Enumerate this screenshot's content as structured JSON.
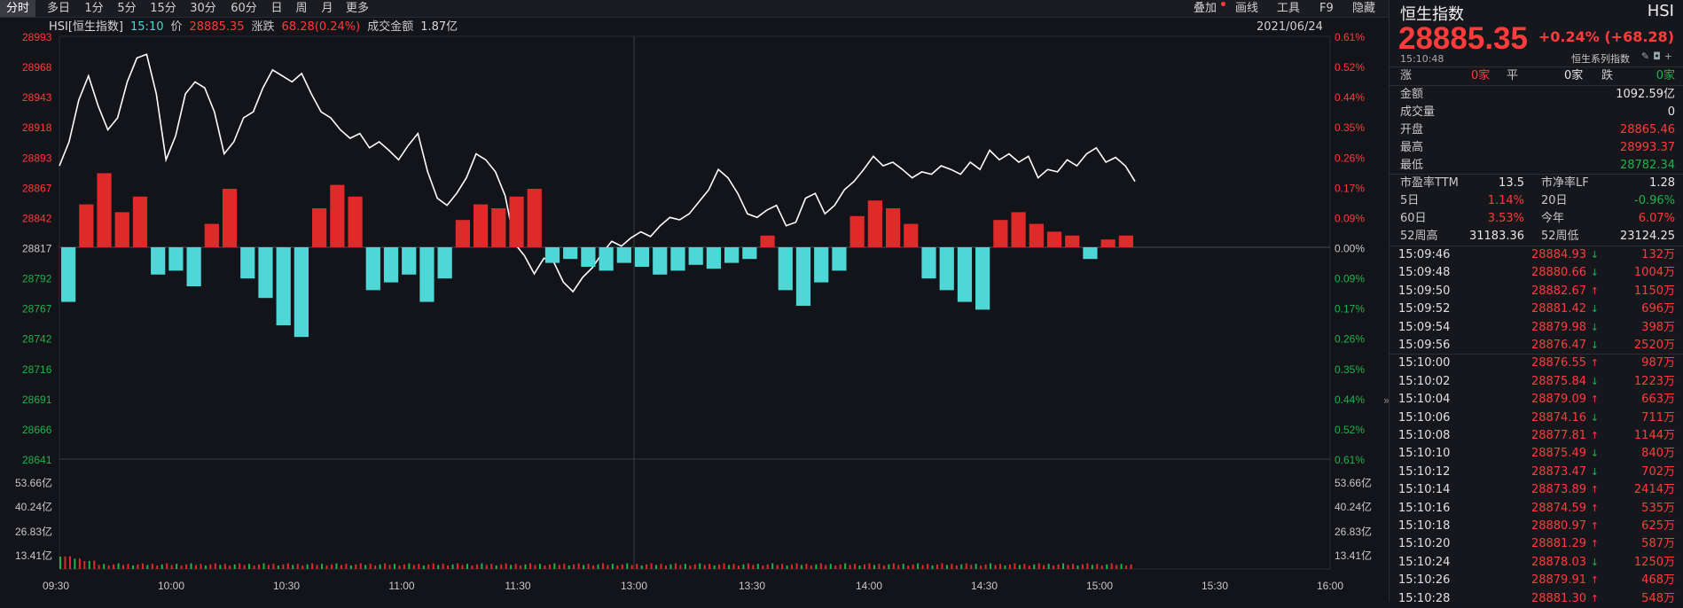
{
  "toolbar": {
    "left_tabs": [
      "分时",
      "多日",
      "1分",
      "5分",
      "15分",
      "30分",
      "60分",
      "日",
      "周",
      "月",
      "更多"
    ],
    "active_tab": "分时",
    "right_tools": [
      "叠加",
      "画线",
      "工具",
      "F9",
      "隐藏"
    ]
  },
  "info": {
    "symbol": "HSI[恒生指数]",
    "time": "15:10",
    "price_label": "价",
    "price": "28885.35",
    "change_label": "涨跌",
    "change": "68.28(0.24%)",
    "turnover_label": "成交金额",
    "turnover": "1.87亿",
    "date": "2021/06/24"
  },
  "colors": {
    "up": "#ff3b3b",
    "down": "#22b14c",
    "down_bar": "#4fd6d6",
    "line": "#ffffff",
    "grid": "#2a2b31"
  },
  "chart_data": {
    "type": "line",
    "base_price": 28817.07,
    "y_ticks": [
      "28993",
      "28968",
      "28943",
      "28918",
      "28893",
      "28867",
      "28842",
      "28817",
      "28792",
      "28767",
      "28742",
      "28716",
      "28691",
      "28666",
      "28641"
    ],
    "pct_ticks": [
      "0.61%",
      "0.52%",
      "0.44%",
      "0.35%",
      "0.26%",
      "0.17%",
      "0.09%",
      "0.00%",
      "0.09%",
      "0.17%",
      "0.26%",
      "0.35%",
      "0.44%",
      "0.52%",
      "0.61%"
    ],
    "volume_ticks": [
      "53.66亿",
      "40.24亿",
      "26.83亿",
      "13.41亿"
    ],
    "x_ticks": [
      "09:30",
      "10:00",
      "10:30",
      "11:00",
      "11:30",
      "13:00",
      "13:30",
      "14:00",
      "14:30",
      "15:00",
      "15:30",
      "16:00"
    ],
    "ylim": [
      28641,
      28993
    ],
    "volume_max": 67.08,
    "price_points": [
      [
        0,
        28885
      ],
      [
        2,
        28905
      ],
      [
        4,
        28940
      ],
      [
        6,
        28960
      ],
      [
        8,
        28935
      ],
      [
        10,
        28915
      ],
      [
        12,
        28925
      ],
      [
        14,
        28955
      ],
      [
        16,
        28975
      ],
      [
        18,
        28978
      ],
      [
        20,
        28945
      ],
      [
        22,
        28890
      ],
      [
        24,
        28910
      ],
      [
        26,
        28945
      ],
      [
        28,
        28955
      ],
      [
        30,
        28950
      ],
      [
        32,
        28930
      ],
      [
        34,
        28895
      ],
      [
        36,
        28905
      ],
      [
        38,
        28925
      ],
      [
        40,
        28930
      ],
      [
        42,
        28950
      ],
      [
        44,
        28965
      ],
      [
        46,
        28960
      ],
      [
        48,
        28955
      ],
      [
        50,
        28962
      ],
      [
        52,
        28945
      ],
      [
        54,
        28930
      ],
      [
        56,
        28925
      ],
      [
        58,
        28915
      ],
      [
        60,
        28908
      ],
      [
        62,
        28912
      ],
      [
        64,
        28900
      ],
      [
        66,
        28905
      ],
      [
        68,
        28898
      ],
      [
        70,
        28890
      ],
      [
        72,
        28902
      ],
      [
        74,
        28912
      ],
      [
        76,
        28880
      ],
      [
        78,
        28858
      ],
      [
        80,
        28852
      ],
      [
        82,
        28862
      ],
      [
        84,
        28875
      ],
      [
        86,
        28895
      ],
      [
        88,
        28890
      ],
      [
        90,
        28880
      ],
      [
        92,
        28860
      ],
      [
        94,
        28820
      ],
      [
        96,
        28810
      ],
      [
        98,
        28795
      ],
      [
        100,
        28808
      ],
      [
        102,
        28805
      ],
      [
        104,
        28788
      ],
      [
        106,
        28780
      ],
      [
        108,
        28792
      ],
      [
        110,
        28800
      ],
      [
        112,
        28812
      ],
      [
        114,
        28822
      ],
      [
        116,
        28818
      ],
      [
        118,
        28825
      ],
      [
        120,
        28830
      ],
      [
        122,
        28826
      ],
      [
        124,
        28835
      ],
      [
        126,
        28842
      ],
      [
        128,
        28840
      ],
      [
        130,
        28845
      ],
      [
        132,
        28855
      ],
      [
        134,
        28865
      ],
      [
        136,
        28882
      ],
      [
        138,
        28875
      ],
      [
        140,
        28862
      ],
      [
        142,
        28845
      ],
      [
        144,
        28842
      ],
      [
        146,
        28848
      ],
      [
        148,
        28852
      ],
      [
        150,
        28835
      ],
      [
        152,
        28838
      ],
      [
        154,
        28858
      ],
      [
        156,
        28862
      ],
      [
        158,
        28845
      ],
      [
        160,
        28852
      ],
      [
        162,
        28865
      ],
      [
        164,
        28872
      ],
      [
        166,
        28882
      ],
      [
        168,
        28893
      ],
      [
        170,
        28885
      ],
      [
        172,
        28888
      ],
      [
        174,
        28882
      ],
      [
        176,
        28875
      ],
      [
        178,
        28880
      ],
      [
        180,
        28878
      ],
      [
        182,
        28885
      ],
      [
        184,
        28882
      ],
      [
        186,
        28878
      ],
      [
        188,
        28888
      ],
      [
        190,
        28882
      ],
      [
        192,
        28898
      ],
      [
        194,
        28890
      ],
      [
        196,
        28895
      ],
      [
        198,
        28888
      ],
      [
        200,
        28893
      ],
      [
        202,
        28875
      ],
      [
        204,
        28882
      ],
      [
        206,
        28880
      ],
      [
        208,
        28890
      ],
      [
        210,
        28885
      ],
      [
        212,
        28895
      ],
      [
        214,
        28900
      ],
      [
        216,
        28888
      ],
      [
        218,
        28892
      ],
      [
        220,
        28885
      ],
      [
        222,
        28872
      ]
    ],
    "volume_bars": [
      [
        0,
        -28
      ],
      [
        1,
        22
      ],
      [
        2,
        38
      ],
      [
        3,
        18
      ],
      [
        4,
        26
      ],
      [
        5,
        -14
      ],
      [
        6,
        -12
      ],
      [
        7,
        -20
      ],
      [
        8,
        12
      ],
      [
        9,
        30
      ],
      [
        10,
        -16
      ],
      [
        11,
        -26
      ],
      [
        12,
        -40
      ],
      [
        13,
        -46
      ],
      [
        14,
        20
      ],
      [
        15,
        32
      ],
      [
        16,
        26
      ],
      [
        17,
        -22
      ],
      [
        18,
        -18
      ],
      [
        19,
        -14
      ],
      [
        20,
        -28
      ],
      [
        21,
        -16
      ],
      [
        22,
        14
      ],
      [
        23,
        22
      ],
      [
        24,
        20
      ],
      [
        25,
        26
      ],
      [
        26,
        30
      ],
      [
        27,
        -8
      ],
      [
        28,
        -6
      ],
      [
        29,
        -10
      ],
      [
        30,
        -12
      ],
      [
        31,
        -8
      ],
      [
        32,
        -10
      ],
      [
        33,
        -14
      ],
      [
        34,
        -12
      ],
      [
        35,
        -9
      ],
      [
        36,
        -11
      ],
      [
        37,
        -8
      ],
      [
        38,
        -6
      ],
      [
        39,
        6
      ],
      [
        40,
        -22
      ],
      [
        41,
        -30
      ],
      [
        42,
        -18
      ],
      [
        43,
        -12
      ],
      [
        44,
        16
      ],
      [
        45,
        24
      ],
      [
        46,
        20
      ],
      [
        47,
        12
      ],
      [
        48,
        -16
      ],
      [
        49,
        -22
      ],
      [
        50,
        -28
      ],
      [
        51,
        -32
      ],
      [
        52,
        14
      ],
      [
        53,
        18
      ],
      [
        54,
        12
      ],
      [
        55,
        8
      ],
      [
        56,
        6
      ],
      [
        57,
        -6
      ],
      [
        58,
        4
      ],
      [
        59,
        6
      ]
    ],
    "title": "",
    "xlabel": "",
    "ylabel": ""
  },
  "panel": {
    "title": "恒生指数",
    "code": "HSI",
    "price": "28885.35",
    "change": "+0.24% (+68.28)",
    "time": "15:10:48",
    "series_label": "恒生系列指数",
    "breadth": {
      "up_label": "涨",
      "up": "0家",
      "flat_label": "平",
      "flat": "0家",
      "down_label": "跌",
      "down": "0家"
    },
    "stats": [
      {
        "label": "金额",
        "value": "1092.59亿",
        "color": "white"
      },
      {
        "label": "成交量",
        "value": "0",
        "color": "white"
      },
      {
        "label": "开盘",
        "value": "28865.46",
        "color": "red"
      },
      {
        "label": "最高",
        "value": "28993.37",
        "color": "red"
      },
      {
        "label": "最低",
        "value": "28782.34",
        "color": "green"
      }
    ],
    "ratios": [
      {
        "l1": "市盈率TTM",
        "v1": "13.5",
        "c1": "white",
        "l2": "市净率LF",
        "v2": "1.28",
        "c2": "white"
      },
      {
        "l1": "5日",
        "v1": "1.14%",
        "c1": "red",
        "l2": "20日",
        "v2": "-0.96%",
        "c2": "green"
      },
      {
        "l1": "60日",
        "v1": "3.53%",
        "c1": "red",
        "l2": "今年",
        "v2": "6.07%",
        "c2": "red"
      },
      {
        "l1": "52周高",
        "v1": "31183.36",
        "c1": "white",
        "l2": "52周低",
        "v2": "23124.25",
        "c2": "white"
      }
    ],
    "ticks": [
      {
        "time": "15:09:46",
        "price": "28884.93",
        "dir": "down",
        "vol": "132万"
      },
      {
        "time": "15:09:48",
        "price": "28880.66",
        "dir": "down",
        "vol": "1004万"
      },
      {
        "time": "15:09:50",
        "price": "28882.67",
        "dir": "up",
        "vol": "1150万"
      },
      {
        "time": "15:09:52",
        "price": "28881.42",
        "dir": "down",
        "vol": "696万"
      },
      {
        "time": "15:09:54",
        "price": "28879.98",
        "dir": "down",
        "vol": "398万"
      },
      {
        "time": "15:09:56",
        "price": "28876.47",
        "dir": "down",
        "vol": "2520万"
      },
      {
        "time": "15:10:00",
        "price": "28876.55",
        "dir": "up",
        "vol": "987万"
      },
      {
        "time": "15:10:02",
        "price": "28875.84",
        "dir": "down",
        "vol": "1223万"
      },
      {
        "time": "15:10:04",
        "price": "28879.09",
        "dir": "up",
        "vol": "663万"
      },
      {
        "time": "15:10:06",
        "price": "28874.16",
        "dir": "down",
        "vol": "711万"
      },
      {
        "time": "15:10:08",
        "price": "28877.81",
        "dir": "up",
        "vol": "1144万"
      },
      {
        "time": "15:10:10",
        "price": "28875.49",
        "dir": "down",
        "vol": "840万"
      },
      {
        "time": "15:10:12",
        "price": "28873.47",
        "dir": "down",
        "vol": "702万"
      },
      {
        "time": "15:10:14",
        "price": "28873.89",
        "dir": "up",
        "vol": "2414万"
      },
      {
        "time": "15:10:16",
        "price": "28874.59",
        "dir": "up",
        "vol": "535万"
      },
      {
        "time": "15:10:18",
        "price": "28880.97",
        "dir": "up",
        "vol": "625万"
      },
      {
        "time": "15:10:20",
        "price": "28881.29",
        "dir": "up",
        "vol": "587万"
      },
      {
        "time": "15:10:24",
        "price": "28878.03",
        "dir": "down",
        "vol": "1250万"
      },
      {
        "time": "15:10:26",
        "price": "28879.91",
        "dir": "up",
        "vol": "468万"
      },
      {
        "time": "15:10:28",
        "price": "28881.30",
        "dir": "up",
        "vol": "548万"
      }
    ]
  }
}
